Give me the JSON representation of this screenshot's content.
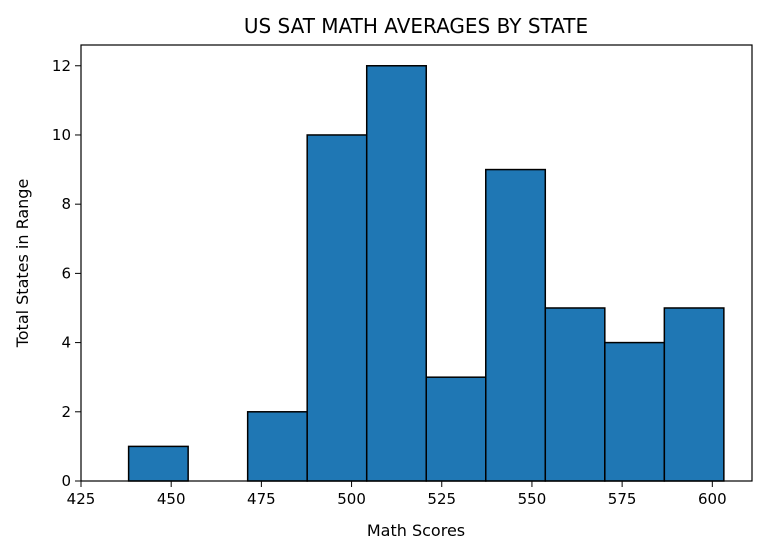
{
  "chart_data": {
    "type": "bar",
    "title": "US SAT MATH AVERAGES BY STATE",
    "xlabel": "Math Scores",
    "ylabel": "Total States in Range",
    "xlim": [
      425,
      611
    ],
    "ylim": [
      0,
      12.6
    ],
    "xticks": [
      "425",
      "450",
      "475",
      "500",
      "525",
      "550",
      "575",
      "600"
    ],
    "yticks": [
      "0",
      "2",
      "4",
      "6",
      "8",
      "10",
      "12"
    ],
    "bins": [
      {
        "x0": 438.2,
        "x1": 454.7,
        "count": 1
      },
      {
        "x0": 454.7,
        "x1": 471.2,
        "count": 0
      },
      {
        "x0": 471.2,
        "x1": 487.7,
        "count": 2
      },
      {
        "x0": 487.7,
        "x1": 504.2,
        "count": 10
      },
      {
        "x0": 504.2,
        "x1": 520.7,
        "count": 12
      },
      {
        "x0": 520.7,
        "x1": 537.2,
        "count": 3
      },
      {
        "x0": 537.2,
        "x1": 553.7,
        "count": 9
      },
      {
        "x0": 553.7,
        "x1": 570.2,
        "count": 5
      },
      {
        "x0": 570.2,
        "x1": 586.7,
        "count": 4
      },
      {
        "x0": 586.7,
        "x1": 603.2,
        "count": 5
      }
    ],
    "grid": false,
    "bar_color": "#1f77b4",
    "edge_color": "#000000"
  }
}
